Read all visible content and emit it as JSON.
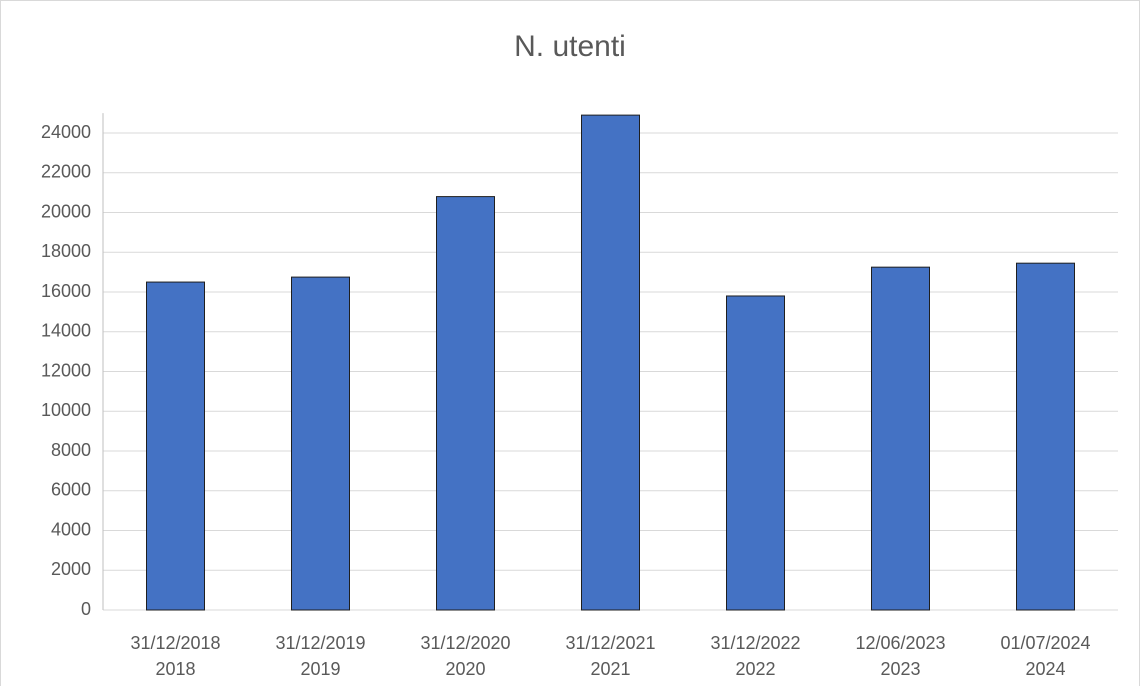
{
  "chart_data": {
    "type": "bar",
    "title": "N. utenti",
    "categories": [
      "31/12/2018",
      "31/12/2019",
      "31/12/2020",
      "31/12/2021",
      "31/12/2022",
      "12/06/2023",
      "01/07/2024"
    ],
    "category_groups": [
      "2018",
      "2019",
      "2020",
      "2021",
      "2022",
      "2023",
      "2024"
    ],
    "values": [
      16500,
      16750,
      20800,
      24900,
      15800,
      17250,
      17450
    ],
    "color": "#4472c4",
    "ylim": [
      0,
      25000
    ],
    "yticks": [
      0,
      2000,
      4000,
      6000,
      8000,
      10000,
      12000,
      14000,
      16000,
      18000,
      20000,
      22000,
      24000
    ],
    "grid": true
  }
}
